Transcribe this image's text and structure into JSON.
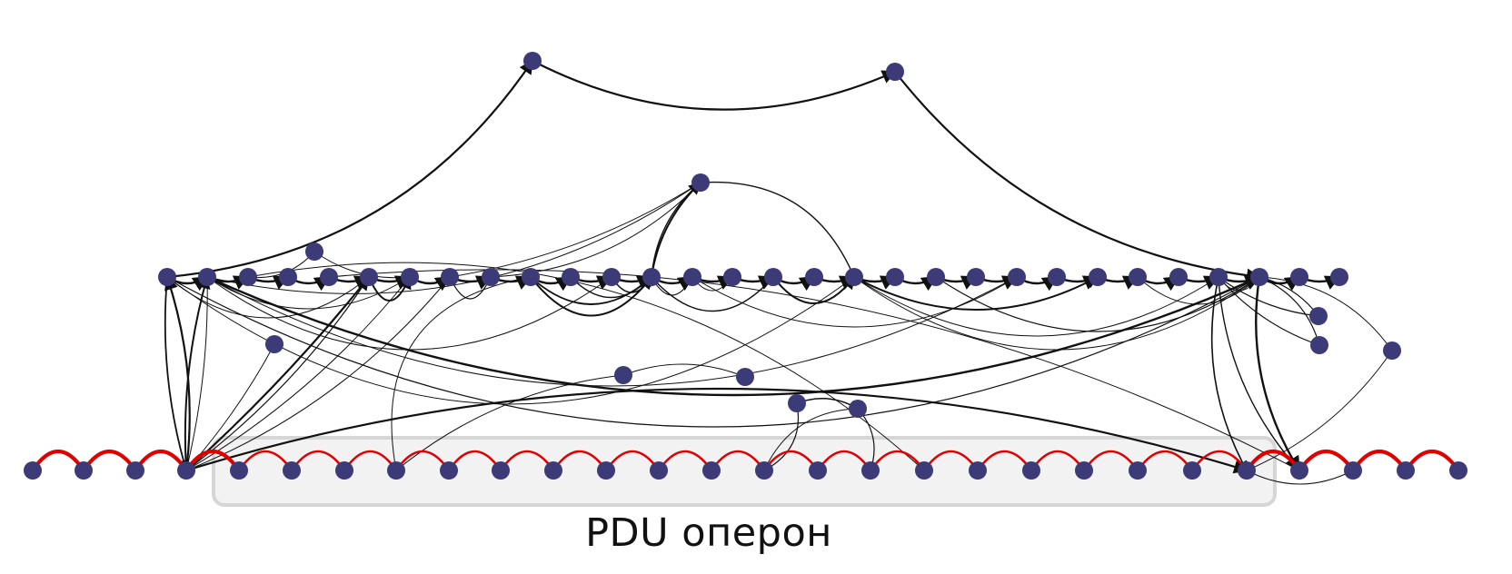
{
  "diagram": {
    "operon_label": "PDU оперон",
    "colors": {
      "node": "#3d3a78",
      "genome_link": "#e00000",
      "edge": "#111111",
      "operon_fill": "#f2f2f2",
      "operon_border": "#d6d6d6"
    }
  }
}
